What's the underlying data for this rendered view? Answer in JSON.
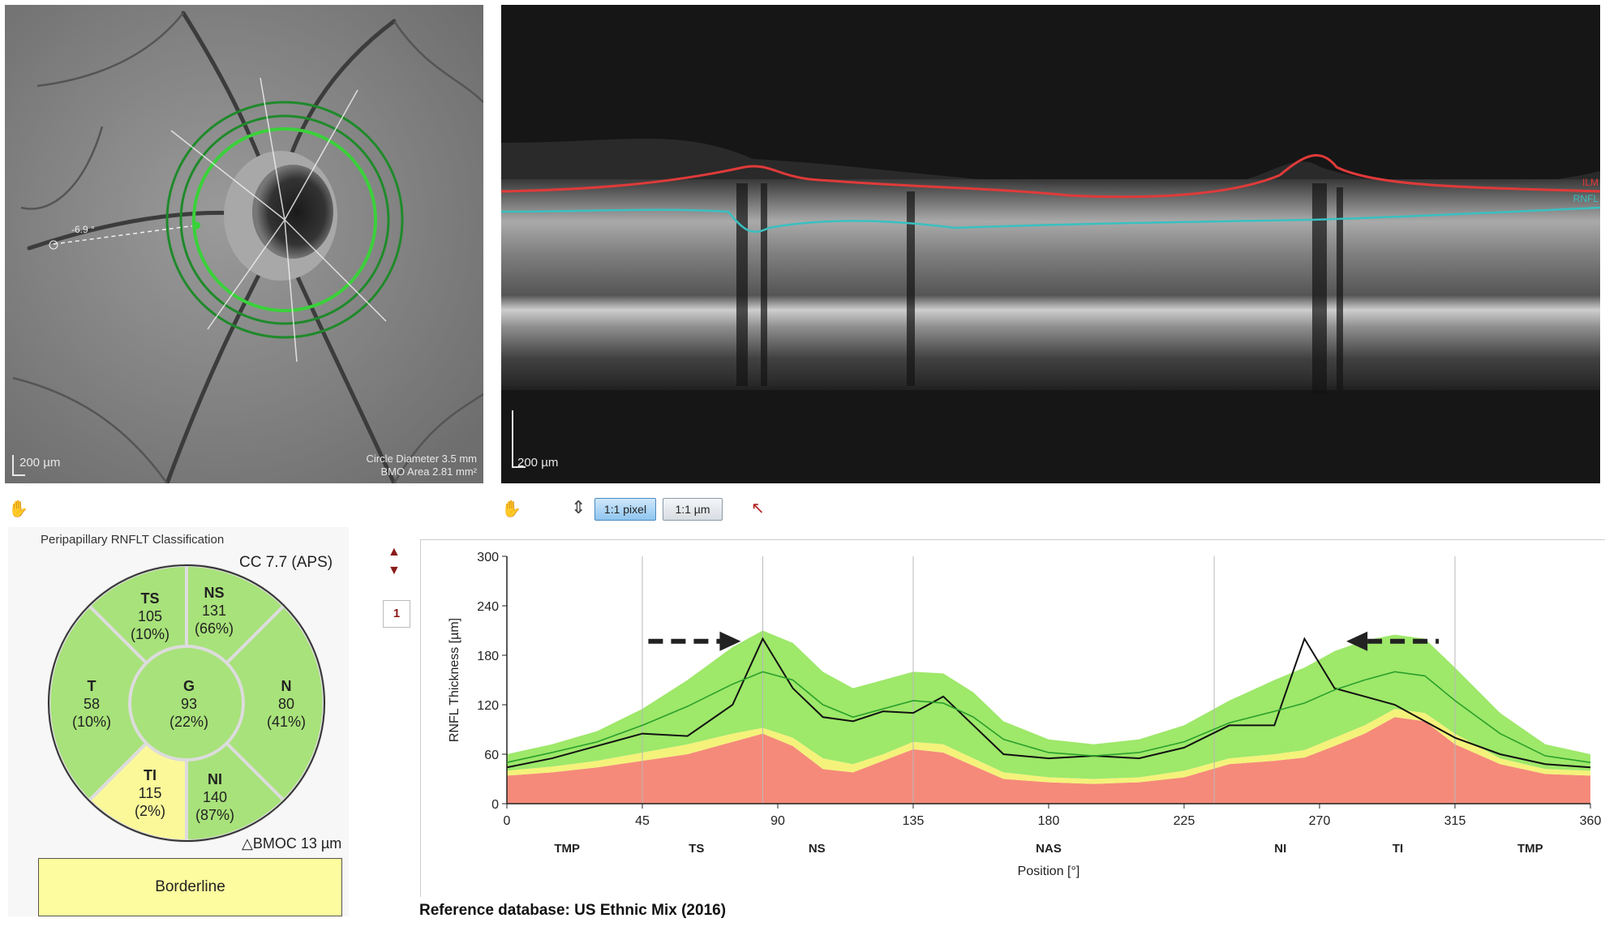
{
  "fundus": {
    "scale_label": "200 µm",
    "angle_label": "-6.9 °",
    "circle_diameter": "Circle Diameter 3.5 mm",
    "bmo_area": "BMO Area 2.81 mm²"
  },
  "oct": {
    "scale_label": "200 µm",
    "layer_label_top": "ILM",
    "layer_label_bottom": "RNFL"
  },
  "toolbar": {
    "hand_icon": "hand-icon",
    "vertical_fit_icon": "fit-vertical-icon",
    "btn_pixel": "1:1 pixel",
    "btn_micron": "1:1 µm",
    "pointer_icon": "pointer-icon"
  },
  "classification": {
    "title": "Peripapillary RNFLT Classification",
    "cc_label": "CC 7.7 (APS)",
    "bmo_label": "△BMOC 13 µm",
    "result": "Borderline",
    "result_color": "#fdfc9e",
    "sectors": {
      "TS": {
        "name": "TS",
        "value": "105",
        "pct": "(10%)"
      },
      "NS": {
        "name": "NS",
        "value": "131",
        "pct": "(66%)"
      },
      "T": {
        "name": "T",
        "value": "58",
        "pct": "(10%)"
      },
      "G": {
        "name": "G",
        "value": "93",
        "pct": "(22%)"
      },
      "N": {
        "name": "N",
        "value": "80",
        "pct": "(41%)"
      },
      "TI": {
        "name": "TI",
        "value": "115",
        "pct": "(2%)"
      },
      "NI": {
        "name": "NI",
        "value": "140",
        "pct": "(87%)"
      }
    },
    "colors": {
      "normal": "#a8e27a",
      "borderline": "#fbf89a"
    }
  },
  "nav": {
    "page": "1"
  },
  "chart_data": {
    "type": "line",
    "ylabel": "RNFL Thickness [µm]",
    "xlabel": "Position [°]",
    "xlim": [
      0,
      360
    ],
    "ylim": [
      0,
      300
    ],
    "xticks": [
      0,
      45,
      90,
      135,
      180,
      225,
      270,
      315,
      360
    ],
    "yticks": [
      0,
      60,
      120,
      180,
      240,
      300
    ],
    "sector_labels": [
      {
        "x": 20,
        "label": "TMP"
      },
      {
        "x": 63,
        "label": "TS"
      },
      {
        "x": 103,
        "label": "NS"
      },
      {
        "x": 180,
        "label": "NAS"
      },
      {
        "x": 257,
        "label": "NI"
      },
      {
        "x": 296,
        "label": "TI"
      },
      {
        "x": 340,
        "label": "TMP"
      }
    ],
    "vlines": [
      45,
      85,
      135,
      235,
      315
    ],
    "x": [
      0,
      15,
      30,
      45,
      60,
      75,
      85,
      95,
      105,
      115,
      125,
      135,
      145,
      155,
      165,
      180,
      195,
      210,
      225,
      240,
      255,
      265,
      275,
      285,
      295,
      305,
      315,
      330,
      345,
      360
    ],
    "series": [
      {
        "name": "RNFL Thickness",
        "color": "#111111",
        "values": [
          44,
          55,
          70,
          85,
          82,
          120,
          200,
          140,
          105,
          100,
          112,
          110,
          130,
          95,
          60,
          55,
          58,
          55,
          68,
          95,
          95,
          200,
          140,
          130,
          120,
          100,
          80,
          60,
          48,
          44
        ]
      },
      {
        "name": "Normal mean",
        "color": "#2aa02a",
        "values": [
          50,
          62,
          75,
          95,
          118,
          145,
          160,
          150,
          120,
          105,
          115,
          125,
          122,
          105,
          78,
          62,
          58,
          62,
          75,
          98,
          112,
          122,
          138,
          150,
          160,
          155,
          125,
          85,
          58,
          50
        ]
      }
    ],
    "bands": {
      "upper_normal": [
        60,
        72,
        88,
        115,
        150,
        190,
        210,
        195,
        160,
        140,
        150,
        160,
        158,
        135,
        100,
        78,
        72,
        78,
        95,
        125,
        150,
        165,
        185,
        198,
        205,
        200,
        165,
        110,
        72,
        60
      ],
      "lower_normal": [
        40,
        45,
        52,
        62,
        72,
        85,
        92,
        80,
        55,
        48,
        60,
        75,
        72,
        55,
        38,
        32,
        30,
        32,
        40,
        55,
        60,
        65,
        80,
        95,
        115,
        110,
        85,
        55,
        42,
        40
      ],
      "lower_borderline": [
        34,
        38,
        44,
        52,
        60,
        75,
        85,
        70,
        42,
        38,
        52,
        66,
        62,
        46,
        30,
        26,
        24,
        26,
        32,
        48,
        52,
        56,
        70,
        85,
        105,
        100,
        72,
        48,
        36,
        34
      ],
      "colors": {
        "normal": "#9ee86a",
        "borderline": "#f4f27a",
        "outside": "#f58a7a"
      }
    },
    "arrows": [
      {
        "direction": "right",
        "x": 47,
        "y": 197
      },
      {
        "direction": "left",
        "x": 280,
        "y": 197
      }
    ]
  },
  "reference": "Reference database: US Ethnic Mix (2016)"
}
